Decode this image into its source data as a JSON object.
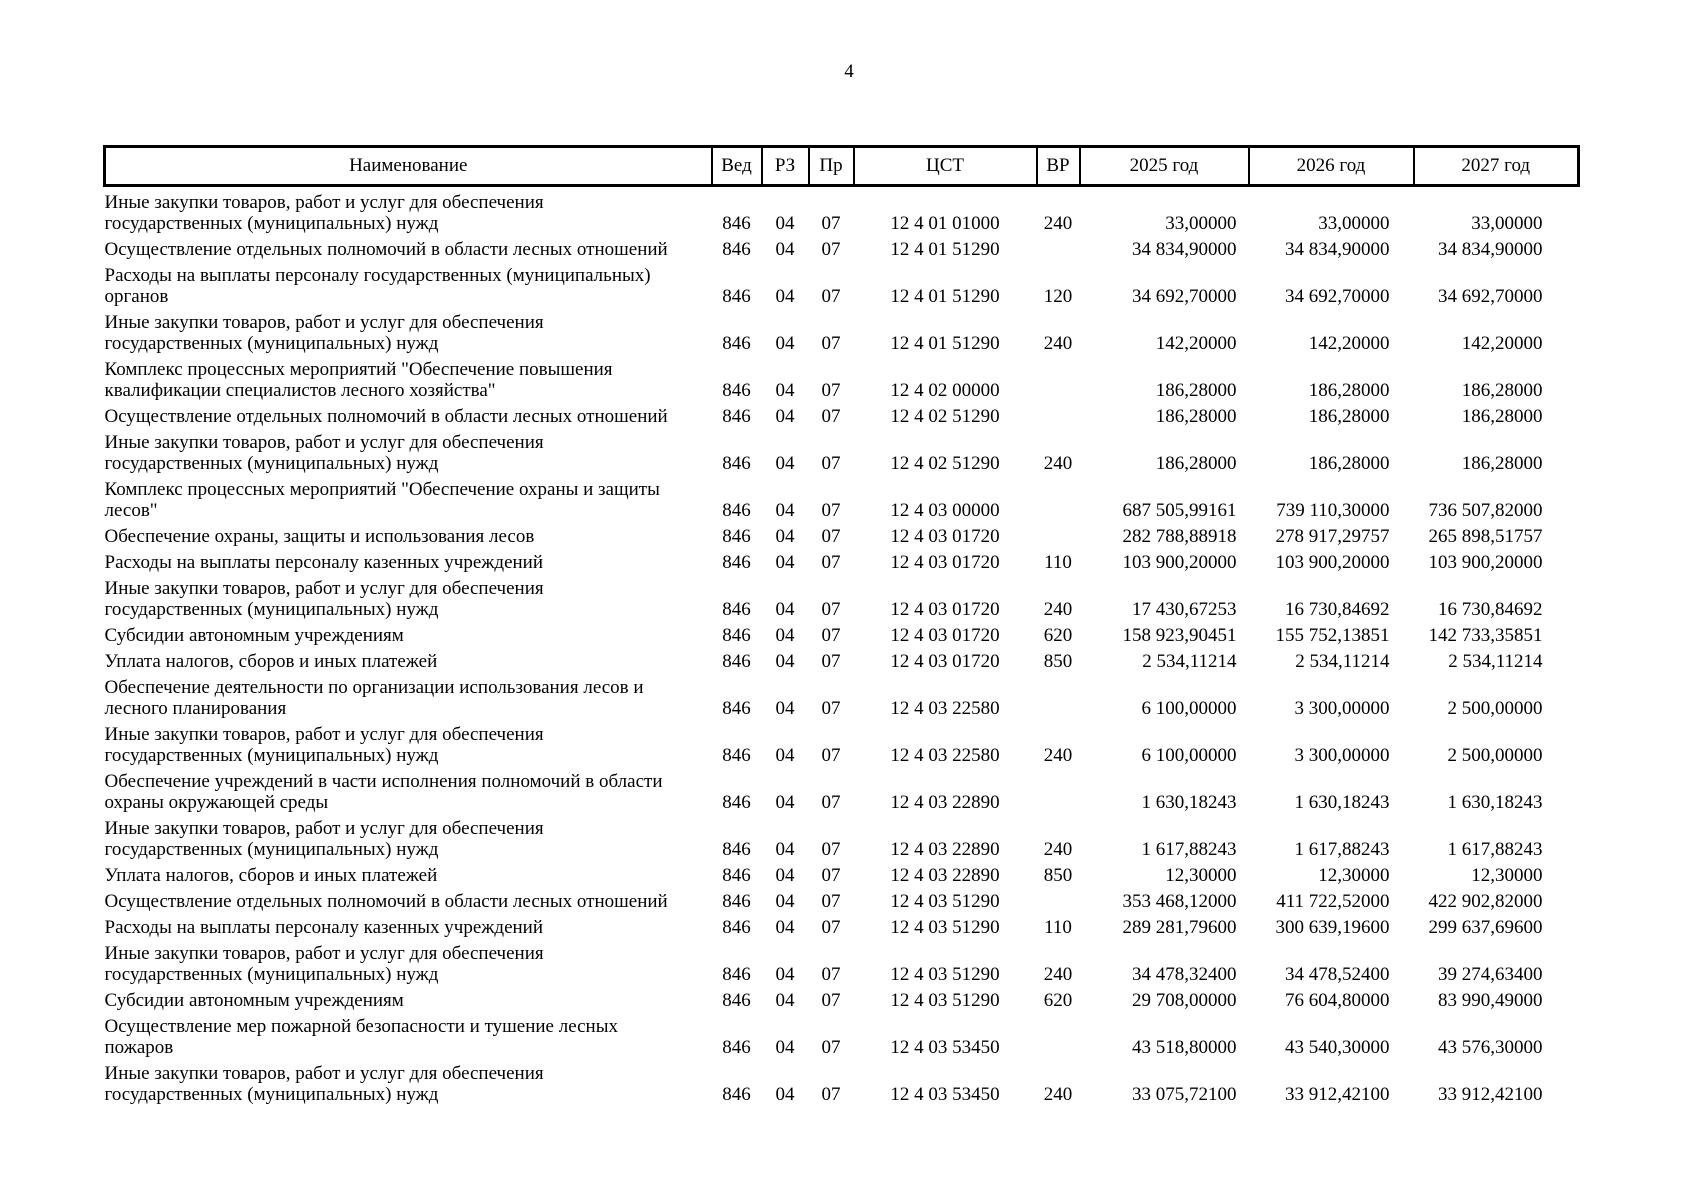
{
  "page": {
    "number": "4"
  },
  "table": {
    "columns": [
      {
        "key": "name",
        "label": "Наименование"
      },
      {
        "key": "ved",
        "label": "Вед"
      },
      {
        "key": "rz",
        "label": "РЗ"
      },
      {
        "key": "pr",
        "label": "Пр"
      },
      {
        "key": "cst",
        "label": "ЦСТ"
      },
      {
        "key": "vr",
        "label": "ВР"
      },
      {
        "key": "y2025",
        "label": "2025 год"
      },
      {
        "key": "y2026",
        "label": "2026 год"
      },
      {
        "key": "y2027",
        "label": "2027 год"
      }
    ],
    "rows": [
      {
        "name": "Иные закупки товаров, работ и услуг для обеспечения\nгосударственных (муниципальных) нужд",
        "ved": "846",
        "rz": "04",
        "pr": "07",
        "cst": "12 4 01 01000",
        "vr": "240",
        "y2025": "33,00000",
        "y2026": "33,00000",
        "y2027": "33,00000"
      },
      {
        "name": "Осуществление отдельных полномочий в области лесных отношений",
        "ved": "846",
        "rz": "04",
        "pr": "07",
        "cst": "12 4 01 51290",
        "vr": "",
        "y2025": "34 834,90000",
        "y2026": "34 834,90000",
        "y2027": "34 834,90000"
      },
      {
        "name": "Расходы на выплаты персоналу государственных (муниципальных)\nорганов",
        "ved": "846",
        "rz": "04",
        "pr": "07",
        "cst": "12 4 01 51290",
        "vr": "120",
        "y2025": "34 692,70000",
        "y2026": "34 692,70000",
        "y2027": "34 692,70000"
      },
      {
        "name": "Иные закупки товаров, работ и услуг для обеспечения\nгосударственных (муниципальных) нужд",
        "ved": "846",
        "rz": "04",
        "pr": "07",
        "cst": "12 4 01 51290",
        "vr": "240",
        "y2025": "142,20000",
        "y2026": "142,20000",
        "y2027": "142,20000"
      },
      {
        "name": "Комплекс процессных мероприятий \"Обеспечение повышения\nквалификации специалистов лесного хозяйства\"",
        "ved": "846",
        "rz": "04",
        "pr": "07",
        "cst": "12 4 02 00000",
        "vr": "",
        "y2025": "186,28000",
        "y2026": "186,28000",
        "y2027": "186,28000"
      },
      {
        "name": "Осуществление отдельных полномочий в области лесных отношений",
        "ved": "846",
        "rz": "04",
        "pr": "07",
        "cst": "12 4 02 51290",
        "vr": "",
        "y2025": "186,28000",
        "y2026": "186,28000",
        "y2027": "186,28000"
      },
      {
        "name": "Иные закупки товаров, работ и услуг для обеспечения\nгосударственных (муниципальных) нужд",
        "ved": "846",
        "rz": "04",
        "pr": "07",
        "cst": "12 4 02 51290",
        "vr": "240",
        "y2025": "186,28000",
        "y2026": "186,28000",
        "y2027": "186,28000"
      },
      {
        "name": "Комплекс процессных мероприятий \"Обеспечение охраны и защиты\nлесов\"",
        "ved": "846",
        "rz": "04",
        "pr": "07",
        "cst": "12 4 03 00000",
        "vr": "",
        "y2025": "687 505,99161",
        "y2026": "739 110,30000",
        "y2027": "736 507,82000"
      },
      {
        "name": "Обеспечение охраны, защиты и использования лесов",
        "ved": "846",
        "rz": "04",
        "pr": "07",
        "cst": "12 4 03 01720",
        "vr": "",
        "y2025": "282 788,88918",
        "y2026": "278 917,29757",
        "y2027": "265 898,51757"
      },
      {
        "name": "Расходы на выплаты персоналу казенных учреждений",
        "ved": "846",
        "rz": "04",
        "pr": "07",
        "cst": "12 4 03 01720",
        "vr": "110",
        "y2025": "103 900,20000",
        "y2026": "103 900,20000",
        "y2027": "103 900,20000"
      },
      {
        "name": "Иные закупки товаров, работ и услуг для обеспечения\nгосударственных (муниципальных) нужд",
        "ved": "846",
        "rz": "04",
        "pr": "07",
        "cst": "12 4 03 01720",
        "vr": "240",
        "y2025": "17 430,67253",
        "y2026": "16 730,84692",
        "y2027": "16 730,84692"
      },
      {
        "name": "Субсидии автономным учреждениям",
        "ved": "846",
        "rz": "04",
        "pr": "07",
        "cst": "12 4 03 01720",
        "vr": "620",
        "y2025": "158 923,90451",
        "y2026": "155 752,13851",
        "y2027": "142 733,35851"
      },
      {
        "name": "Уплата налогов, сборов и иных платежей",
        "ved": "846",
        "rz": "04",
        "pr": "07",
        "cst": "12 4 03 01720",
        "vr": "850",
        "y2025": "2 534,11214",
        "y2026": "2 534,11214",
        "y2027": "2 534,11214"
      },
      {
        "name": "Обеспечение деятельности по организации использования лесов и\nлесного планирования",
        "ved": "846",
        "rz": "04",
        "pr": "07",
        "cst": "12 4 03 22580",
        "vr": "",
        "y2025": "6 100,00000",
        "y2026": "3 300,00000",
        "y2027": "2 500,00000"
      },
      {
        "name": "Иные закупки товаров, работ и услуг для обеспечения\nгосударственных (муниципальных) нужд",
        "ved": "846",
        "rz": "04",
        "pr": "07",
        "cst": "12 4 03 22580",
        "vr": "240",
        "y2025": "6 100,00000",
        "y2026": "3 300,00000",
        "y2027": "2 500,00000"
      },
      {
        "name": "Обеспечение учреждений в части исполнения полномочий в области\nохраны окружающей среды",
        "ved": "846",
        "rz": "04",
        "pr": "07",
        "cst": "12 4 03 22890",
        "vr": "",
        "y2025": "1 630,18243",
        "y2026": "1 630,18243",
        "y2027": "1 630,18243"
      },
      {
        "name": "Иные закупки товаров, работ и услуг для обеспечения\nгосударственных (муниципальных) нужд",
        "ved": "846",
        "rz": "04",
        "pr": "07",
        "cst": "12 4 03 22890",
        "vr": "240",
        "y2025": "1 617,88243",
        "y2026": "1 617,88243",
        "y2027": "1 617,88243"
      },
      {
        "name": "Уплата налогов, сборов и иных платежей",
        "ved": "846",
        "rz": "04",
        "pr": "07",
        "cst": "12 4 03 22890",
        "vr": "850",
        "y2025": "12,30000",
        "y2026": "12,30000",
        "y2027": "12,30000"
      },
      {
        "name": "Осуществление отдельных полномочий в области лесных отношений",
        "ved": "846",
        "rz": "04",
        "pr": "07",
        "cst": "12 4 03 51290",
        "vr": "",
        "y2025": "353 468,12000",
        "y2026": "411 722,52000",
        "y2027": "422 902,82000"
      },
      {
        "name": "Расходы на выплаты персоналу казенных учреждений",
        "ved": "846",
        "rz": "04",
        "pr": "07",
        "cst": "12 4 03 51290",
        "vr": "110",
        "y2025": "289 281,79600",
        "y2026": "300 639,19600",
        "y2027": "299 637,69600"
      },
      {
        "name": "Иные закупки товаров, работ и услуг для обеспечения\nгосударственных (муниципальных) нужд",
        "ved": "846",
        "rz": "04",
        "pr": "07",
        "cst": "12 4 03 51290",
        "vr": "240",
        "y2025": "34 478,32400",
        "y2026": "34 478,52400",
        "y2027": "39 274,63400"
      },
      {
        "name": "Субсидии автономным учреждениям",
        "ved": "846",
        "rz": "04",
        "pr": "07",
        "cst": "12 4 03 51290",
        "vr": "620",
        "y2025": "29 708,00000",
        "y2026": "76 604,80000",
        "y2027": "83 990,49000"
      },
      {
        "name": "Осуществление мер пожарной безопасности и тушение лесных\nпожаров",
        "ved": "846",
        "rz": "04",
        "pr": "07",
        "cst": "12 4 03 53450",
        "vr": "",
        "y2025": "43 518,80000",
        "y2026": "43 540,30000",
        "y2027": "43 576,30000"
      },
      {
        "name": "Иные закупки товаров, работ и услуг для обеспечения\nгосударственных (муниципальных) нужд",
        "ved": "846",
        "rz": "04",
        "pr": "07",
        "cst": "12 4 03 53450",
        "vr": "240",
        "y2025": "33 075,72100",
        "y2026": "33 912,42100",
        "y2027": "33 912,42100"
      }
    ]
  }
}
